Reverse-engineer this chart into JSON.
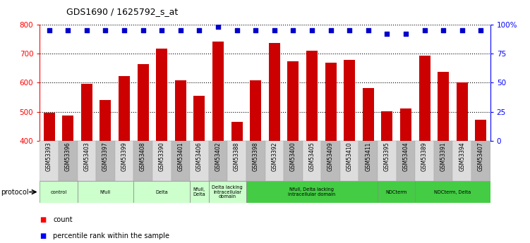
{
  "title": "GDS1690 / 1625792_s_at",
  "samples": [
    "GSM53393",
    "GSM53396",
    "GSM53403",
    "GSM53397",
    "GSM53399",
    "GSM53408",
    "GSM53390",
    "GSM53401",
    "GSM53406",
    "GSM53402",
    "GSM53388",
    "GSM53398",
    "GSM53392",
    "GSM53400",
    "GSM53405",
    "GSM53409",
    "GSM53410",
    "GSM53411",
    "GSM53395",
    "GSM53404",
    "GSM53389",
    "GSM53391",
    "GSM53394",
    "GSM53407"
  ],
  "counts": [
    497,
    487,
    597,
    540,
    623,
    663,
    716,
    607,
    554,
    740,
    466,
    607,
    736,
    672,
    709,
    668,
    679,
    581,
    501,
    511,
    692,
    637,
    601,
    472
  ],
  "percentiles": [
    95,
    95,
    95,
    95,
    95,
    95,
    95,
    95,
    95,
    98,
    95,
    95,
    95,
    95,
    95,
    95,
    95,
    95,
    92,
    92,
    95,
    95,
    95,
    95
  ],
  "groups": [
    {
      "label": "control",
      "start": 0,
      "end": 2,
      "color": "#ccffcc"
    },
    {
      "label": "Nfull",
      "start": 2,
      "end": 5,
      "color": "#ccffcc"
    },
    {
      "label": "Delta",
      "start": 5,
      "end": 8,
      "color": "#ccffcc"
    },
    {
      "label": "Nfull,\nDelta",
      "start": 8,
      "end": 9,
      "color": "#ccffcc"
    },
    {
      "label": "Delta lacking\nintracellular\ndomain",
      "start": 9,
      "end": 11,
      "color": "#ccffcc"
    },
    {
      "label": "Nfull, Delta lacking\nintracellular domain",
      "start": 11,
      "end": 18,
      "color": "#44cc44"
    },
    {
      "label": "NDCterm",
      "start": 18,
      "end": 20,
      "color": "#44cc44"
    },
    {
      "label": "NDCterm, Delta",
      "start": 20,
      "end": 24,
      "color": "#44cc44"
    }
  ],
  "ylim_left": [
    400,
    800
  ],
  "ylim_right": [
    0,
    100
  ],
  "right_ticks": [
    0,
    25,
    50,
    75,
    100
  ],
  "right_tick_labels": [
    "0",
    "25",
    "50",
    "75",
    "100%"
  ],
  "left_ticks": [
    400,
    500,
    600,
    700,
    800
  ],
  "bar_color": "#cc0000",
  "dot_color": "#0000cc",
  "grid_color": "#000000",
  "light_green": "#ccffcc",
  "dark_green": "#44cc44",
  "label_bg_light": "#dddddd",
  "label_bg_dark": "#bbbbbb"
}
